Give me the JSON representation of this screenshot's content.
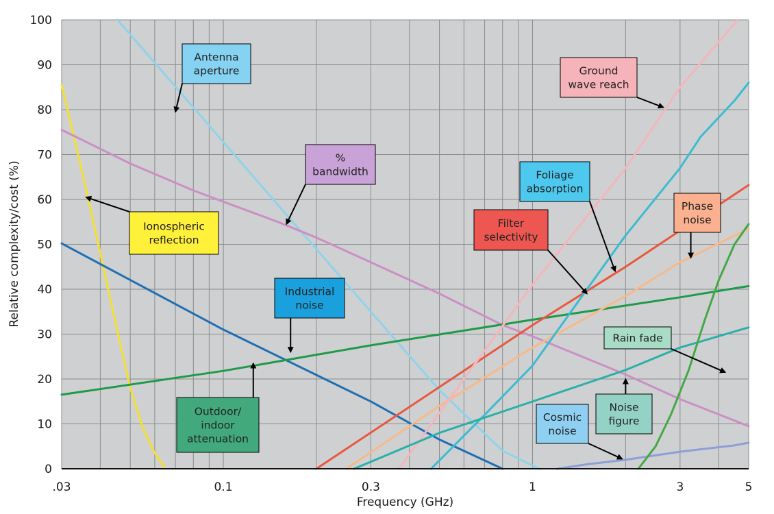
{
  "chart_data": {
    "type": "line",
    "xlabel": "Frequency (GHz)",
    "ylabel": "Relative complexity/cost (%)",
    "x_scale": "log",
    "xlim": [
      0.03,
      5
    ],
    "ylim": [
      0,
      100
    ],
    "grid": true,
    "x_ticks": [
      {
        "value": 0.03,
        "label": ".03"
      },
      {
        "value": 0.1,
        "label": "0.1"
      },
      {
        "value": 0.3,
        "label": "0.3"
      },
      {
        "value": 1,
        "label": "1"
      },
      {
        "value": 3,
        "label": "3"
      },
      {
        "value": 5,
        "label": "5"
      }
    ],
    "y_ticks": [
      0,
      10,
      20,
      30,
      40,
      50,
      60,
      70,
      80,
      90,
      100
    ],
    "series": [
      {
        "name": "Ionospheric reflection",
        "color": "#f2e033",
        "points": [
          [
            0.03,
            85.5
          ],
          [
            0.035,
            66
          ],
          [
            0.04,
            48
          ],
          [
            0.045,
            32
          ],
          [
            0.05,
            18
          ],
          [
            0.055,
            9
          ],
          [
            0.06,
            3.5
          ],
          [
            0.065,
            0
          ]
        ]
      },
      {
        "name": "Antenna aperture",
        "color": "#8fd3ea",
        "points": [
          [
            0.0455,
            100
          ],
          [
            0.1,
            72.8
          ],
          [
            0.3,
            35
          ],
          [
            0.5,
            17.5
          ],
          [
            0.8,
            4
          ],
          [
            1.05,
            0
          ]
        ]
      },
      {
        "name": "% bandwidth",
        "color": "#cc8fc4",
        "points": [
          [
            0.03,
            75.5
          ],
          [
            0.05,
            68
          ],
          [
            0.08,
            62
          ],
          [
            0.1,
            59.5
          ],
          [
            0.15,
            55
          ],
          [
            0.2,
            51.5
          ],
          [
            0.3,
            46
          ],
          [
            0.5,
            39
          ],
          [
            0.8,
            32
          ],
          [
            1,
            29.5
          ],
          [
            2,
            21
          ],
          [
            3,
            15.5
          ],
          [
            5,
            9.5
          ]
        ]
      },
      {
        "name": "Industrial noise",
        "color": "#1f6fb2",
        "points": [
          [
            0.03,
            50.2
          ],
          [
            0.1,
            31
          ],
          [
            0.3,
            15
          ],
          [
            0.5,
            6.5
          ],
          [
            0.8,
            0
          ]
        ]
      },
      {
        "name": "Outdoor/ indoor attenuation",
        "color": "#1f9a48",
        "points": [
          [
            0.03,
            16.5
          ],
          [
            0.1,
            21.8
          ],
          [
            0.3,
            27.5
          ],
          [
            1,
            33.2
          ],
          [
            3,
            38.2
          ],
          [
            5,
            40.7
          ]
        ]
      },
      {
        "name": "Filter selectivity",
        "color": "#e8583e",
        "points": [
          [
            0.2,
            0
          ],
          [
            1,
            32
          ],
          [
            2,
            45
          ],
          [
            5,
            63.2
          ]
        ]
      },
      {
        "name": "Phase noise",
        "color": "#f7b98a",
        "points": [
          [
            0.25,
            0
          ],
          [
            0.5,
            14
          ],
          [
            1,
            27
          ],
          [
            2,
            38.5
          ],
          [
            3,
            46
          ],
          [
            5,
            53.5
          ]
        ]
      },
      {
        "name": "Foliage absorption",
        "color": "#3bbcd0",
        "points": [
          [
            0.47,
            0
          ],
          [
            0.7,
            12
          ],
          [
            1,
            23
          ],
          [
            1.5,
            40
          ],
          [
            2,
            52
          ],
          [
            3,
            67
          ],
          [
            3.5,
            74
          ],
          [
            4.5,
            82
          ],
          [
            5,
            86
          ]
        ]
      },
      {
        "name": "Ground wave reach",
        "color": "#f4b6bd",
        "points": [
          [
            0.37,
            0
          ],
          [
            0.6,
            20
          ],
          [
            1,
            41
          ],
          [
            2,
            67
          ],
          [
            3,
            85
          ],
          [
            4.6,
            100
          ]
        ]
      },
      {
        "name": "Noise figure",
        "color": "#2ab0a8",
        "points": [
          [
            0.265,
            0
          ],
          [
            0.5,
            8
          ],
          [
            1,
            15
          ],
          [
            2,
            22
          ],
          [
            3,
            27
          ],
          [
            5,
            31.5
          ]
        ]
      },
      {
        "name": "Cosmic noise",
        "color": "#8c9fd6",
        "points": [
          [
            1.2,
            0
          ],
          [
            1.5,
            1
          ],
          [
            2,
            2
          ],
          [
            3,
            3.8
          ],
          [
            4.5,
            5.2
          ],
          [
            5,
            5.8
          ]
        ]
      },
      {
        "name": "Rain fade",
        "color": "#46a845",
        "points": [
          [
            2.2,
            0
          ],
          [
            2.5,
            5
          ],
          [
            2.8,
            12
          ],
          [
            3.2,
            22
          ],
          [
            3.6,
            33
          ],
          [
            4,
            42
          ],
          [
            4.5,
            50
          ],
          [
            5,
            54.5
          ]
        ]
      }
    ],
    "annotations": [
      {
        "lines": [
          "Antenna",
          "aperture"
        ],
        "fill": "#86d2f2",
        "arrow_to": [
          0.07,
          79.5
        ]
      },
      {
        "lines": [
          "%",
          "bandwidth"
        ],
        "fill": "#c9a2d8",
        "arrow_to": [
          0.16,
          54.5
        ]
      },
      {
        "lines": [
          "Ionospheric",
          "reflection"
        ],
        "fill": "#fff03a",
        "arrow_to": [
          0.036,
          60.5
        ]
      },
      {
        "lines": [
          "Industrial",
          "noise"
        ],
        "fill": "#1aa0dd",
        "arrow_to": [
          0.165,
          26
        ]
      },
      {
        "lines": [
          "Outdoor/",
          "indoor",
          "attenuation"
        ],
        "fill": "#42a97c",
        "arrow_to": [
          0.125,
          23.5
        ]
      },
      {
        "lines": [
          "Foliage",
          "absorption"
        ],
        "fill": "#4dc8ee",
        "arrow_to": [
          1.85,
          44
        ]
      },
      {
        "lines": [
          "Filter",
          "selectivity"
        ],
        "fill": "#ee5751",
        "arrow_to": [
          1.5,
          39
        ]
      },
      {
        "lines": [
          "Ground",
          "wave reach"
        ],
        "fill": "#f6b3ba",
        "arrow_to": [
          2.65,
          80.5
        ]
      },
      {
        "lines": [
          "Phase",
          "noise"
        ],
        "fill": "#fbb18f",
        "arrow_to": [
          3.25,
          47
        ]
      },
      {
        "lines": [
          "Rain fade"
        ],
        "fill": "#a8dcc6",
        "arrow_to": [
          4.2,
          21.5
        ]
      },
      {
        "lines": [
          "Noise",
          "figure"
        ],
        "fill": "#94d2c5",
        "arrow_to": [
          2.0,
          20
        ]
      },
      {
        "lines": [
          "Cosmic",
          "noise"
        ],
        "fill": "#8fcff2",
        "arrow_to": [
          1.95,
          2.2
        ]
      }
    ]
  }
}
